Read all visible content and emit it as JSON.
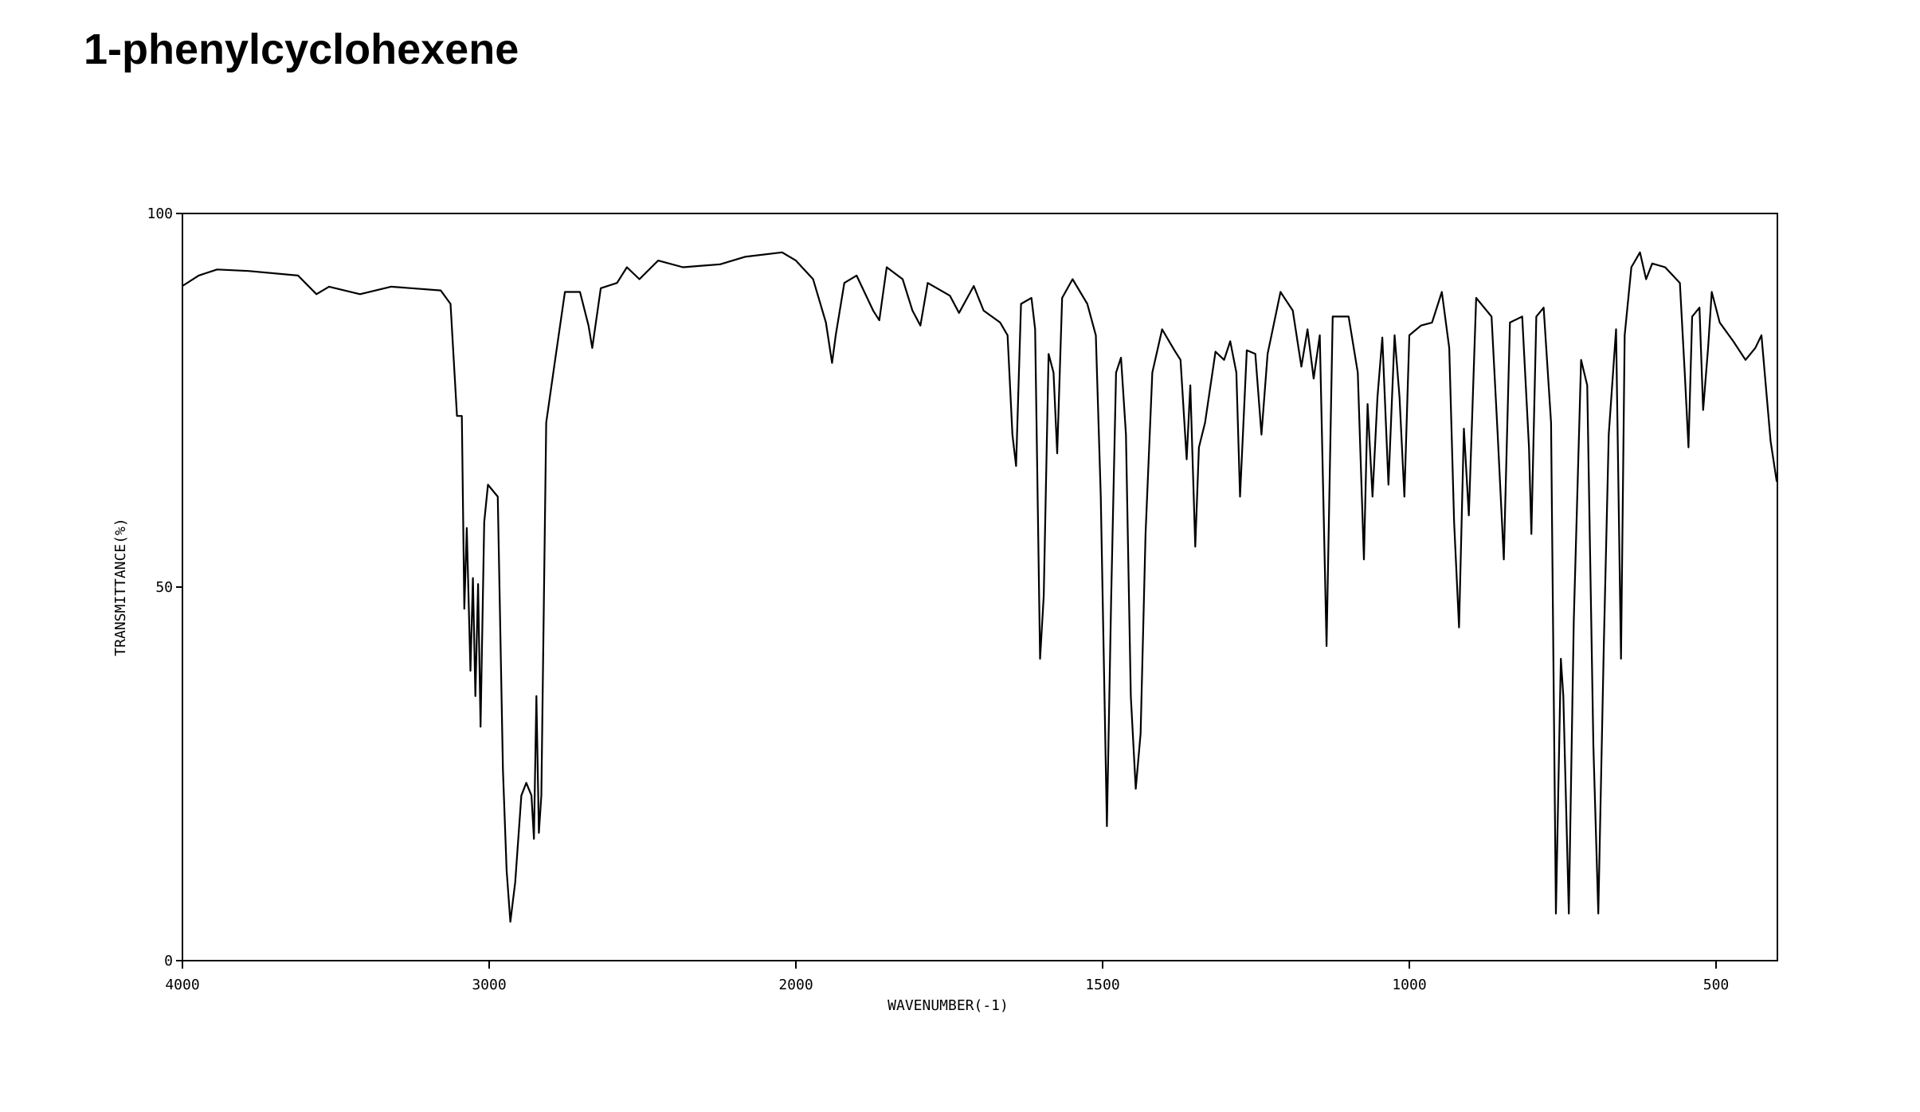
{
  "chart_data": {
    "type": "line",
    "title": "1-phenylcyclohexene",
    "xlabel": "WAVENUMBER(-1)",
    "ylabel": "TRANSMITTANCE(%)",
    "xlim": [
      4000,
      400
    ],
    "xticks": [
      4000,
      3000,
      2000,
      1500,
      1000,
      500
    ],
    "xscale_break": 2000,
    "xscale_ratio": 2,
    "ylim": [
      0,
      100
    ],
    "yticks": [
      0,
      50,
      100
    ],
    "color": "#000000",
    "x": [
      4000,
      3947,
      3887,
      3785,
      3623,
      3563,
      3522,
      3421,
      3320,
      3158,
      3126,
      3105,
      3089,
      3081,
      3073,
      3061,
      3053,
      3045,
      3036,
      3028,
      3016,
      3004,
      2988,
      2972,
      2955,
      2943,
      2931,
      2915,
      2895,
      2879,
      2862,
      2854,
      2846,
      2838,
      2830,
      2814,
      2785,
      2753,
      2704,
      2676,
      2664,
      2636,
      2583,
      2551,
      2510,
      2449,
      2368,
      2247,
      2166,
      2045,
      2000,
      1972,
      1951,
      1941,
      1935,
      1921,
      1901,
      1874,
      1864,
      1852,
      1826,
      1810,
      1797,
      1785,
      1749,
      1734,
      1710,
      1694,
      1667,
      1655,
      1647,
      1641,
      1633,
      1616,
      1610,
      1602,
      1596,
      1588,
      1580,
      1574,
      1566,
      1549,
      1525,
      1511,
      1503,
      1493,
      1486,
      1478,
      1470,
      1462,
      1454,
      1446,
      1438,
      1430,
      1419,
      1403,
      1383,
      1373,
      1363,
      1357,
      1349,
      1343,
      1333,
      1316,
      1302,
      1292,
      1282,
      1276,
      1265,
      1251,
      1241,
      1231,
      1210,
      1190,
      1176,
      1166,
      1156,
      1146,
      1135,
      1125,
      1099,
      1084,
      1074,
      1068,
      1060,
      1052,
      1044,
      1034,
      1024,
      1016,
      1008,
      1000,
      981,
      963,
      947,
      935,
      927,
      919,
      911,
      903,
      891,
      866,
      856,
      846,
      836,
      816,
      805,
      801,
      793,
      781,
      769,
      761,
      753,
      749,
      740,
      732,
      720,
      710,
      700,
      692,
      683,
      675,
      663,
      655,
      649,
      638,
      624,
      614,
      604,
      583,
      559,
      551,
      545,
      539,
      527,
      521,
      513,
      507,
      494,
      472,
      452,
      436,
      426,
      411,
      401
    ],
    "values": [
      90.3,
      91.7,
      92.5,
      92.3,
      91.7,
      89.2,
      90.2,
      89.2,
      90.2,
      89.7,
      87.9,
      72.9,
      72.9,
      47.1,
      57.9,
      38.8,
      51.2,
      35.4,
      50.4,
      31.3,
      58.7,
      63.7,
      62.9,
      62.1,
      25.5,
      12.1,
      5.2,
      10.5,
      22.1,
      23.8,
      22.1,
      16.3,
      35.4,
      17.1,
      22.1,
      72,
      80.4,
      89.5,
      89.5,
      85,
      82,
      90,
      90.7,
      92.8,
      91.2,
      93.7,
      92.8,
      93.2,
      94.2,
      94.8,
      93.7,
      91.2,
      85.4,
      80,
      83.7,
      90.7,
      91.7,
      87,
      85.7,
      92.8,
      91.2,
      87,
      85,
      90.7,
      89,
      86.7,
      90.3,
      87,
      85.4,
      83.7,
      70.4,
      66.2,
      87.9,
      88.7,
      84.5,
      40.4,
      48.8,
      81.2,
      78.7,
      67.9,
      88.7,
      91.2,
      87.9,
      83.7,
      62.1,
      18,
      48.8,
      78.7,
      80.7,
      70.4,
      35.4,
      23,
      30.4,
      57.1,
      78.7,
      84.5,
      81.7,
      80.4,
      67.1,
      77,
      55.4,
      68.7,
      72,
      81.5,
      80.4,
      82.9,
      78.7,
      62.1,
      81.7,
      81.2,
      70.4,
      81.2,
      89.5,
      87,
      79.5,
      84.5,
      77.9,
      83.7,
      42.1,
      86.2,
      86.2,
      78.7,
      53.7,
      74.5,
      62.1,
      75.4,
      83.4,
      63.7,
      83.7,
      75.4,
      62.1,
      83.7,
      85,
      85.4,
      89.5,
      82,
      58.7,
      44.6,
      71.2,
      59.6,
      88.7,
      86.2,
      70.4,
      53.7,
      85.4,
      86.2,
      68.7,
      57.1,
      86.2,
      87.4,
      72,
      6.3,
      40.4,
      35.4,
      6.3,
      45.4,
      80.4,
      77,
      28.8,
      6.3,
      42.1,
      70.4,
      84.5,
      40.4,
      83.7,
      92.8,
      94.8,
      91.2,
      93.3,
      92.8,
      90.7,
      78.7,
      68.7,
      86.2,
      87.4,
      73.7,
      82,
      89.5,
      85.4,
      82.9,
      80.4,
      82,
      83.7,
      69.5,
      64.1
    ]
  }
}
